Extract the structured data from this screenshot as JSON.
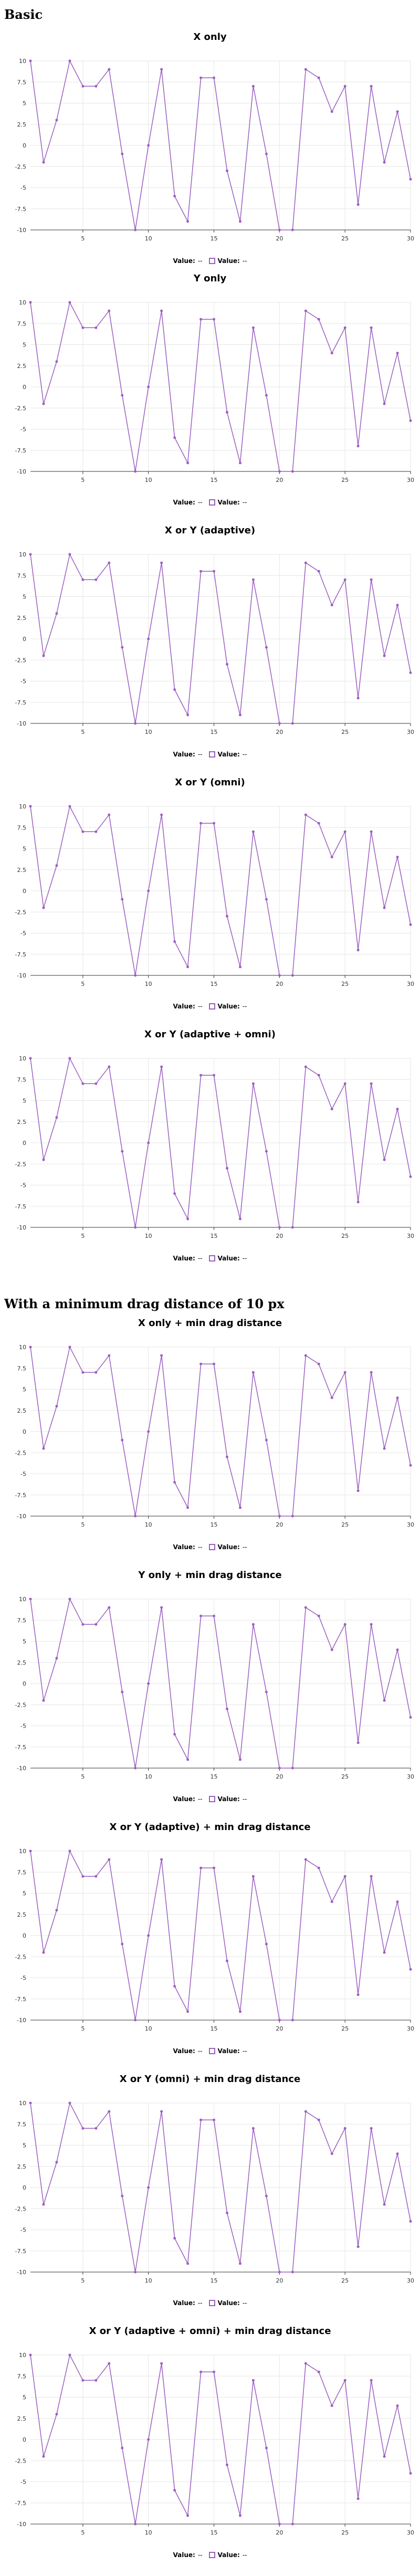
{
  "sections": [
    {
      "title": "Basic"
    },
    {
      "title": "With a minimum drag distance of 10 px"
    }
  ],
  "legend": {
    "label": "Value:",
    "value": "--"
  },
  "colors": {
    "series": "#9b5fc0",
    "grid": "#e6e6e6",
    "axis": "#333333"
  },
  "chart_data": [
    {
      "type": "line",
      "title": "X only",
      "x": [
        1,
        2,
        3,
        4,
        5,
        6,
        7,
        8,
        9,
        10,
        11,
        12,
        13,
        14,
        15,
        16,
        17,
        18,
        19,
        20,
        21,
        22,
        23,
        24,
        25,
        26,
        27,
        28,
        29,
        30
      ],
      "values": [
        10,
        -2,
        3,
        10,
        7,
        7,
        9,
        -1,
        -10,
        0,
        9,
        -6,
        -9,
        8,
        8,
        -3,
        -9,
        7,
        -1,
        -10,
        -10,
        9,
        8,
        4,
        7,
        -7,
        7,
        -2,
        4,
        -4
      ],
      "xticks": [
        5,
        10,
        15,
        20,
        25,
        30
      ],
      "yticks": [
        10,
        7.5,
        5,
        2.5,
        0,
        -2.5,
        -5,
        -7.5,
        -10
      ],
      "xlim": [
        1,
        30
      ],
      "ylim": [
        -10,
        10
      ],
      "grid": true,
      "legend": "bottom-center"
    },
    {
      "type": "line",
      "title": "Y only",
      "x": [
        1,
        2,
        3,
        4,
        5,
        6,
        7,
        8,
        9,
        10,
        11,
        12,
        13,
        14,
        15,
        16,
        17,
        18,
        19,
        20,
        21,
        22,
        23,
        24,
        25,
        26,
        27,
        28,
        29,
        30
      ],
      "values": [
        10,
        -2,
        3,
        10,
        7,
        7,
        9,
        -1,
        -10,
        0,
        9,
        -6,
        -9,
        8,
        8,
        -3,
        -9,
        7,
        -1,
        -10,
        -10,
        9,
        8,
        4,
        7,
        -7,
        7,
        -2,
        4,
        -4
      ],
      "xticks": [
        5,
        10,
        15,
        20,
        25,
        30
      ],
      "yticks": [
        10,
        7.5,
        5,
        2.5,
        0,
        -2.5,
        -5,
        -7.5,
        -10
      ],
      "xlim": [
        1,
        30
      ],
      "ylim": [
        -10,
        10
      ],
      "grid": true,
      "legend": "bottom-center"
    },
    {
      "type": "line",
      "title": "X or Y (adaptive)",
      "x": [
        1,
        2,
        3,
        4,
        5,
        6,
        7,
        8,
        9,
        10,
        11,
        12,
        13,
        14,
        15,
        16,
        17,
        18,
        19,
        20,
        21,
        22,
        23,
        24,
        25,
        26,
        27,
        28,
        29,
        30
      ],
      "values": [
        10,
        -2,
        3,
        10,
        7,
        7,
        9,
        -1,
        -10,
        0,
        9,
        -6,
        -9,
        8,
        8,
        -3,
        -9,
        7,
        -1,
        -10,
        -10,
        9,
        8,
        4,
        7,
        -7,
        7,
        -2,
        4,
        -4
      ],
      "xticks": [
        5,
        10,
        15,
        20,
        25,
        30
      ],
      "yticks": [
        10,
        7.5,
        5,
        2.5,
        0,
        -2.5,
        -5,
        -7.5,
        -10
      ],
      "xlim": [
        1,
        30
      ],
      "ylim": [
        -10,
        10
      ],
      "grid": true,
      "legend": "bottom-center"
    },
    {
      "type": "line",
      "title": "X or Y (omni)",
      "x": [
        1,
        2,
        3,
        4,
        5,
        6,
        7,
        8,
        9,
        10,
        11,
        12,
        13,
        14,
        15,
        16,
        17,
        18,
        19,
        20,
        21,
        22,
        23,
        24,
        25,
        26,
        27,
        28,
        29,
        30
      ],
      "values": [
        10,
        -2,
        3,
        10,
        7,
        7,
        9,
        -1,
        -10,
        0,
        9,
        -6,
        -9,
        8,
        8,
        -3,
        -9,
        7,
        -1,
        -10,
        -10,
        9,
        8,
        4,
        7,
        -7,
        7,
        -2,
        4,
        -4
      ],
      "xticks": [
        5,
        10,
        15,
        20,
        25,
        30
      ],
      "yticks": [
        10,
        7.5,
        5,
        2.5,
        0,
        -2.5,
        -5,
        -7.5,
        -10
      ],
      "xlim": [
        1,
        30
      ],
      "ylim": [
        -10,
        10
      ],
      "grid": true,
      "legend": "bottom-center"
    },
    {
      "type": "line",
      "title": "X or Y (adaptive + omni)",
      "x": [
        1,
        2,
        3,
        4,
        5,
        6,
        7,
        8,
        9,
        10,
        11,
        12,
        13,
        14,
        15,
        16,
        17,
        18,
        19,
        20,
        21,
        22,
        23,
        24,
        25,
        26,
        27,
        28,
        29,
        30
      ],
      "values": [
        10,
        -2,
        3,
        10,
        7,
        7,
        9,
        -1,
        -10,
        0,
        9,
        -6,
        -9,
        8,
        8,
        -3,
        -9,
        7,
        -1,
        -10,
        -10,
        9,
        8,
        4,
        7,
        -7,
        7,
        -2,
        4,
        -4
      ],
      "xticks": [
        5,
        10,
        15,
        20,
        25,
        30
      ],
      "yticks": [
        10,
        7.5,
        5,
        2.5,
        0,
        -2.5,
        -5,
        -7.5,
        -10
      ],
      "xlim": [
        1,
        30
      ],
      "ylim": [
        -10,
        10
      ],
      "grid": true,
      "legend": "bottom-center"
    },
    {
      "type": "line",
      "title": "X only + min drag distance",
      "x": [
        1,
        2,
        3,
        4,
        5,
        6,
        7,
        8,
        9,
        10,
        11,
        12,
        13,
        14,
        15,
        16,
        17,
        18,
        19,
        20,
        21,
        22,
        23,
        24,
        25,
        26,
        27,
        28,
        29,
        30
      ],
      "values": [
        10,
        -2,
        3,
        10,
        7,
        7,
        9,
        -1,
        -10,
        0,
        9,
        -6,
        -9,
        8,
        8,
        -3,
        -9,
        7,
        -1,
        -10,
        -10,
        9,
        8,
        4,
        7,
        -7,
        7,
        -2,
        4,
        -4
      ],
      "xticks": [
        5,
        10,
        15,
        20,
        25,
        30
      ],
      "yticks": [
        10,
        7.5,
        5,
        2.5,
        0,
        -2.5,
        -5,
        -7.5,
        -10
      ],
      "xlim": [
        1,
        30
      ],
      "ylim": [
        -10,
        10
      ],
      "grid": true,
      "legend": "bottom-center"
    },
    {
      "type": "line",
      "title": "Y only + min drag distance",
      "x": [
        1,
        2,
        3,
        4,
        5,
        6,
        7,
        8,
        9,
        10,
        11,
        12,
        13,
        14,
        15,
        16,
        17,
        18,
        19,
        20,
        21,
        22,
        23,
        24,
        25,
        26,
        27,
        28,
        29,
        30
      ],
      "values": [
        10,
        -2,
        3,
        10,
        7,
        7,
        9,
        -1,
        -10,
        0,
        9,
        -6,
        -9,
        8,
        8,
        -3,
        -9,
        7,
        -1,
        -10,
        -10,
        9,
        8,
        4,
        7,
        -7,
        7,
        -2,
        4,
        -4
      ],
      "xticks": [
        5,
        10,
        15,
        20,
        25,
        30
      ],
      "yticks": [
        10,
        7.5,
        5,
        2.5,
        0,
        -2.5,
        -5,
        -7.5,
        -10
      ],
      "xlim": [
        1,
        30
      ],
      "ylim": [
        -10,
        10
      ],
      "grid": true,
      "legend": "bottom-center"
    },
    {
      "type": "line",
      "title": "X or Y (adaptive) + min drag distance",
      "x": [
        1,
        2,
        3,
        4,
        5,
        6,
        7,
        8,
        9,
        10,
        11,
        12,
        13,
        14,
        15,
        16,
        17,
        18,
        19,
        20,
        21,
        22,
        23,
        24,
        25,
        26,
        27,
        28,
        29,
        30
      ],
      "values": [
        10,
        -2,
        3,
        10,
        7,
        7,
        9,
        -1,
        -10,
        0,
        9,
        -6,
        -9,
        8,
        8,
        -3,
        -9,
        7,
        -1,
        -10,
        -10,
        9,
        8,
        4,
        7,
        -7,
        7,
        -2,
        4,
        -4
      ],
      "xticks": [
        5,
        10,
        15,
        20,
        25,
        30
      ],
      "yticks": [
        10,
        7.5,
        5,
        2.5,
        0,
        -2.5,
        -5,
        -7.5,
        -10
      ],
      "xlim": [
        1,
        30
      ],
      "ylim": [
        -10,
        10
      ],
      "grid": true,
      "legend": "bottom-center"
    },
    {
      "type": "line",
      "title": "X or Y (omni) + min drag distance",
      "x": [
        1,
        2,
        3,
        4,
        5,
        6,
        7,
        8,
        9,
        10,
        11,
        12,
        13,
        14,
        15,
        16,
        17,
        18,
        19,
        20,
        21,
        22,
        23,
        24,
        25,
        26,
        27,
        28,
        29,
        30
      ],
      "values": [
        10,
        -2,
        3,
        10,
        7,
        7,
        9,
        -1,
        -10,
        0,
        9,
        -6,
        -9,
        8,
        8,
        -3,
        -9,
        7,
        -1,
        -10,
        -10,
        9,
        8,
        4,
        7,
        -7,
        7,
        -2,
        4,
        -4
      ],
      "xticks": [
        5,
        10,
        15,
        20,
        25,
        30
      ],
      "yticks": [
        10,
        7.5,
        5,
        2.5,
        0,
        -2.5,
        -5,
        -7.5,
        -10
      ],
      "xlim": [
        1,
        30
      ],
      "ylim": [
        -10,
        10
      ],
      "grid": true,
      "legend": "bottom-center"
    },
    {
      "type": "line",
      "title": "X or Y (adaptive + omni) + min drag distance",
      "x": [
        1,
        2,
        3,
        4,
        5,
        6,
        7,
        8,
        9,
        10,
        11,
        12,
        13,
        14,
        15,
        16,
        17,
        18,
        19,
        20,
        21,
        22,
        23,
        24,
        25,
        26,
        27,
        28,
        29,
        30
      ],
      "values": [
        10,
        -2,
        3,
        10,
        7,
        7,
        9,
        -1,
        -10,
        0,
        9,
        -6,
        -9,
        8,
        8,
        -3,
        -9,
        7,
        -1,
        -10,
        -10,
        9,
        8,
        4,
        7,
        -7,
        7,
        -2,
        4,
        -4
      ],
      "xticks": [
        5,
        10,
        15,
        20,
        25,
        30
      ],
      "yticks": [
        10,
        7.5,
        5,
        2.5,
        0,
        -2.5,
        -5,
        -7.5,
        -10
      ],
      "xlim": [
        1,
        30
      ],
      "ylim": [
        -10,
        10
      ],
      "grid": true,
      "legend": "bottom-center"
    }
  ]
}
